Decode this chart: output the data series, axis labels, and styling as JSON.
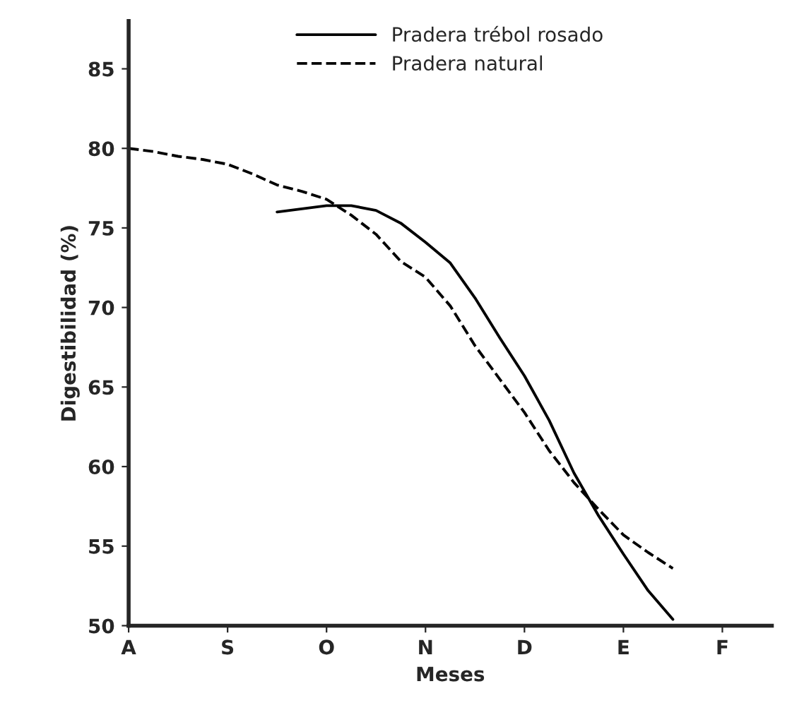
{
  "chart_data": {
    "type": "line",
    "xlabel": "Meses",
    "ylabel": "Digestibilidad (%)",
    "categories": [
      "A",
      null,
      null,
      null,
      "S",
      null,
      null,
      null,
      "O",
      null,
      null,
      null,
      "N",
      null,
      null,
      null,
      "D",
      null,
      null,
      null,
      "E",
      null,
      null,
      null,
      "F",
      null,
      null
    ],
    "ylim": [
      50,
      88
    ],
    "yticks": [
      50,
      55,
      60,
      65,
      70,
      75,
      80,
      85
    ],
    "legend": "top",
    "marker": "none",
    "series": [
      {
        "name": "Pradera trébol rosado",
        "color": "#000000",
        "line_style": "solid",
        "values": [
          null,
          null,
          null,
          null,
          null,
          null,
          76.0,
          76.2,
          76.4,
          76.4,
          76.1,
          75.3,
          74.1,
          72.8,
          70.6,
          68.1,
          65.7,
          62.9,
          59.6,
          56.9,
          54.5,
          52.2,
          50.4,
          null,
          null,
          null,
          null
        ]
      },
      {
        "name": "Pradera natural",
        "color": "#000000",
        "line_style": "dashed",
        "values": [
          80,
          79.8,
          79.5,
          79.3,
          79.0,
          78.4,
          77.7,
          77.3,
          76.8,
          75.8,
          74.6,
          72.9,
          71.9,
          70.1,
          67.6,
          65.5,
          63.4,
          61.0,
          59.0,
          57.3,
          55.7,
          54.6,
          53.6,
          null,
          null,
          null,
          null
        ]
      }
    ]
  }
}
